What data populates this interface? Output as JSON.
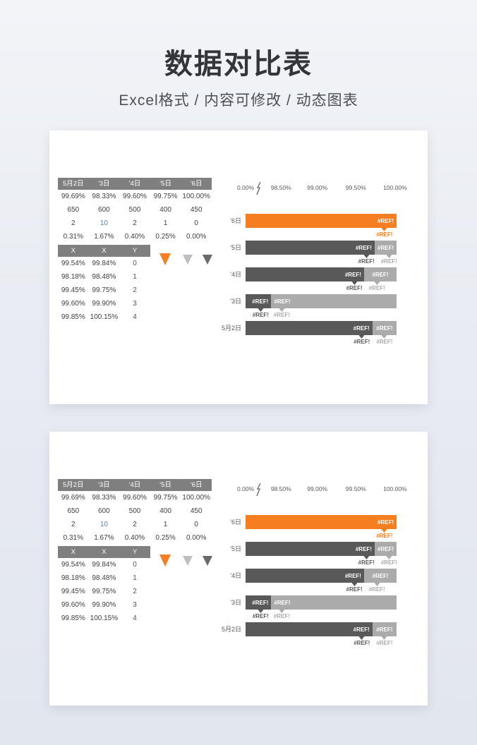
{
  "page": {
    "title": "数据对比表",
    "subtitle": "Excel格式 / 内容可修改 / 动态图表"
  },
  "panels": 2,
  "colors": {
    "orange": "#F57E20",
    "dark": "#595959",
    "light": "#ABABAB",
    "header_gray": "#7F7F7F",
    "blue_text": "#5B7FAE",
    "navy_text": "#44546A",
    "legend_light": "#BFBFBF",
    "legend_dark": "#6A6A6A"
  },
  "table_main": {
    "headers": [
      "5月2日",
      "'3日",
      "'4日",
      "'5日",
      "'6日"
    ],
    "rows": [
      [
        "99.69%",
        "98.33%",
        "99.60%",
        "99.75%",
        "100.00%"
      ],
      [
        "650",
        "600",
        "500",
        "400",
        "450"
      ],
      [
        "2",
        "10",
        "2",
        "1",
        "0"
      ],
      [
        "0.31%",
        "1.67%",
        "0.40%",
        "0.25%",
        "0.00%"
      ]
    ],
    "blue_cells": [
      [
        2,
        1
      ]
    ]
  },
  "table_xy": {
    "headers": [
      "X",
      "X",
      "Y"
    ],
    "rows": [
      [
        "99.54%",
        "99.84%",
        "0"
      ],
      [
        "98.18%",
        "98.48%",
        "1"
      ],
      [
        "99.45%",
        "99.75%",
        "2"
      ],
      [
        "99.60%",
        "99.90%",
        "3"
      ],
      [
        "99.85%",
        "100.15%",
        "4"
      ]
    ],
    "navy_col": 2
  },
  "legend_markers": [
    {
      "name": "orange-triangle-marker",
      "shape": "triangle-down",
      "color": "#F57E20",
      "size": "big"
    },
    {
      "name": "light-gray-triangle-marker",
      "shape": "triangle-down",
      "color": "#BFBFBF",
      "size": "small"
    },
    {
      "name": "dark-gray-triangle-marker",
      "shape": "triangle-down",
      "color": "#6A6A6A",
      "size": "small"
    }
  ],
  "chart_data": {
    "type": "bar",
    "orientation": "horizontal",
    "value_axis_position": "top",
    "axis_ticks": [
      "0.00%",
      "98.50%",
      "99.00%",
      "99.50%",
      "100.00%"
    ],
    "tick_positions_pct": [
      0,
      23.5,
      47.5,
      73,
      99
    ],
    "has_axis_break": true,
    "data_label_text": "#REF!",
    "categories": [
      "'6日",
      "'5日",
      "'4日",
      "'3日",
      "5月2日"
    ],
    "bars": [
      {
        "category": "'6日",
        "segments": [
          {
            "color_key": "orange",
            "width_pct": 100,
            "label": "#REF!",
            "align": "right"
          }
        ],
        "callouts": [
          {
            "text": "#REF!",
            "color_key": "orange",
            "x_pct": 92
          }
        ]
      },
      {
        "category": "'5日",
        "segments": [
          {
            "color_key": "dark",
            "width_pct": 85.5,
            "label": "#REF!",
            "align": "right"
          },
          {
            "color_key": "light",
            "width_pct": 14.5,
            "label": "#REF!",
            "align": "center"
          }
        ],
        "callouts": [
          {
            "text": "#REF!",
            "color_key": "dark",
            "x_pct": 80
          },
          {
            "text": "#REF!",
            "color_key": "light",
            "x_pct": 95
          }
        ]
      },
      {
        "category": "'4日",
        "segments": [
          {
            "color_key": "dark",
            "width_pct": 78.5,
            "label": "#REF!",
            "align": "right"
          },
          {
            "color_key": "light",
            "width_pct": 21.5,
            "label": "#REF!",
            "align": "center"
          }
        ],
        "callouts": [
          {
            "text": "#REF!",
            "color_key": "dark",
            "x_pct": 72
          },
          {
            "text": "#REF!",
            "color_key": "light",
            "x_pct": 87
          }
        ]
      },
      {
        "category": "'3日",
        "segments": [
          {
            "color_key": "dark",
            "width_pct": 17,
            "label": "#REF!",
            "align": "right"
          },
          {
            "color_key": "light",
            "width_pct": 83,
            "label": "#REF!",
            "align": "left"
          }
        ],
        "callouts": [
          {
            "text": "#REF!",
            "color_key": "dark",
            "x_pct": 10
          },
          {
            "text": "#REF!",
            "color_key": "light",
            "x_pct": 24
          }
        ]
      },
      {
        "category": "5月2日",
        "segments": [
          {
            "color_key": "dark",
            "width_pct": 84,
            "label": "#REF!",
            "align": "right"
          },
          {
            "color_key": "light",
            "width_pct": 16,
            "label": "#REF!",
            "align": "center"
          }
        ],
        "callouts": [
          {
            "text": "#REF!",
            "color_key": "dark",
            "x_pct": 77
          },
          {
            "text": "#REF!",
            "color_key": "light",
            "x_pct": 92
          }
        ]
      }
    ]
  }
}
